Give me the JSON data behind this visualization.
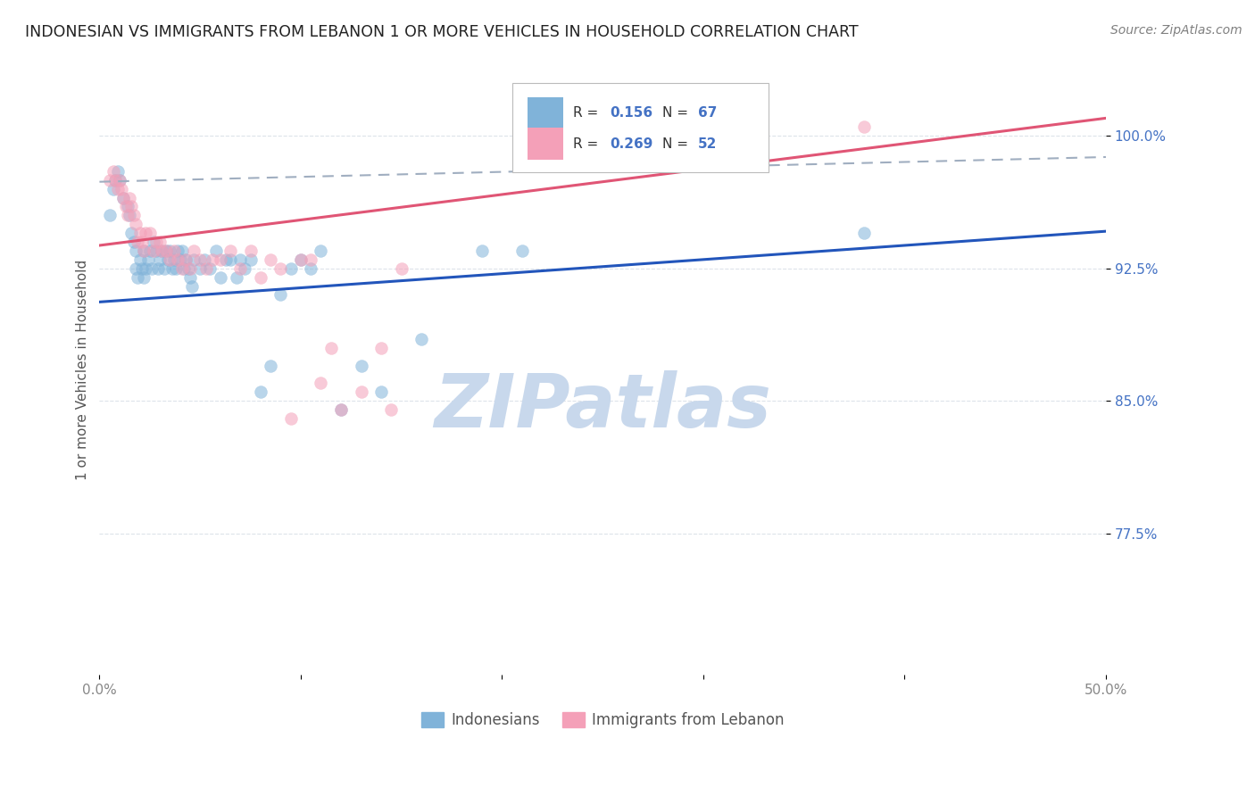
{
  "title": "INDONESIAN VS IMMIGRANTS FROM LEBANON 1 OR MORE VEHICLES IN HOUSEHOLD CORRELATION CHART",
  "source": "Source: ZipAtlas.com",
  "ylabel": "1 or more Vehicles in Household",
  "ytick_labels": [
    "100.0%",
    "92.5%",
    "85.0%",
    "77.5%"
  ],
  "ytick_values": [
    1.0,
    0.925,
    0.85,
    0.775
  ],
  "xlim": [
    0.0,
    0.5
  ],
  "ylim": [
    0.695,
    1.04
  ],
  "legend_R1": "R = ",
  "legend_V1": "0.156",
  "legend_N1": "N = ",
  "legend_NV1": "67",
  "legend_R2": "R = ",
  "legend_V2": "0.269",
  "legend_N2": "N = ",
  "legend_NV2": "52",
  "indonesian_scatter_x": [
    0.005,
    0.007,
    0.008,
    0.009,
    0.01,
    0.012,
    0.014,
    0.015,
    0.016,
    0.017,
    0.018,
    0.018,
    0.019,
    0.02,
    0.021,
    0.022,
    0.022,
    0.023,
    0.024,
    0.025,
    0.026,
    0.027,
    0.028,
    0.029,
    0.03,
    0.031,
    0.032,
    0.033,
    0.034,
    0.035,
    0.036,
    0.037,
    0.038,
    0.039,
    0.04,
    0.041,
    0.042,
    0.043,
    0.044,
    0.045,
    0.046,
    0.047,
    0.05,
    0.052,
    0.055,
    0.058,
    0.06,
    0.063,
    0.065,
    0.068,
    0.07,
    0.072,
    0.075,
    0.08,
    0.085,
    0.09,
    0.095,
    0.1,
    0.105,
    0.11,
    0.12,
    0.13,
    0.14,
    0.16,
    0.19,
    0.21,
    0.38
  ],
  "indonesian_scatter_y": [
    0.955,
    0.97,
    0.975,
    0.98,
    0.975,
    0.965,
    0.96,
    0.955,
    0.945,
    0.94,
    0.935,
    0.925,
    0.92,
    0.93,
    0.925,
    0.935,
    0.92,
    0.925,
    0.93,
    0.935,
    0.925,
    0.94,
    0.935,
    0.925,
    0.93,
    0.935,
    0.925,
    0.935,
    0.93,
    0.935,
    0.925,
    0.93,
    0.925,
    0.935,
    0.93,
    0.935,
    0.925,
    0.93,
    0.925,
    0.92,
    0.915,
    0.93,
    0.925,
    0.93,
    0.925,
    0.935,
    0.92,
    0.93,
    0.93,
    0.92,
    0.93,
    0.925,
    0.93,
    0.855,
    0.87,
    0.91,
    0.925,
    0.93,
    0.925,
    0.935,
    0.845,
    0.87,
    0.855,
    0.885,
    0.935,
    0.935,
    0.945
  ],
  "lebanon_scatter_x": [
    0.005,
    0.007,
    0.008,
    0.009,
    0.01,
    0.011,
    0.012,
    0.013,
    0.014,
    0.015,
    0.016,
    0.017,
    0.018,
    0.019,
    0.02,
    0.021,
    0.022,
    0.023,
    0.025,
    0.027,
    0.028,
    0.03,
    0.031,
    0.033,
    0.035,
    0.037,
    0.039,
    0.041,
    0.043,
    0.045,
    0.047,
    0.05,
    0.053,
    0.056,
    0.06,
    0.065,
    0.07,
    0.075,
    0.08,
    0.085,
    0.09,
    0.095,
    0.1,
    0.105,
    0.11,
    0.115,
    0.12,
    0.13,
    0.14,
    0.145,
    0.15,
    0.38
  ],
  "lebanon_scatter_y": [
    0.975,
    0.98,
    0.975,
    0.97,
    0.975,
    0.97,
    0.965,
    0.96,
    0.955,
    0.965,
    0.96,
    0.955,
    0.95,
    0.94,
    0.945,
    0.94,
    0.935,
    0.945,
    0.945,
    0.935,
    0.94,
    0.94,
    0.935,
    0.935,
    0.93,
    0.935,
    0.93,
    0.925,
    0.93,
    0.925,
    0.935,
    0.93,
    0.925,
    0.93,
    0.93,
    0.935,
    0.925,
    0.935,
    0.92,
    0.93,
    0.925,
    0.84,
    0.93,
    0.93,
    0.86,
    0.88,
    0.845,
    0.855,
    0.88,
    0.845,
    0.925,
    1.005
  ],
  "indonesian_line_x": [
    0.0,
    0.5
  ],
  "indonesian_line_y": [
    0.906,
    0.946
  ],
  "lebanon_line_x": [
    0.0,
    0.5
  ],
  "lebanon_line_y": [
    0.938,
    1.01
  ],
  "dashed_line_x": [
    0.0,
    0.5
  ],
  "dashed_line_y": [
    0.974,
    0.988
  ],
  "scatter_size": 100,
  "indonesian_color": "#80b3d9",
  "indonesian_edge": "#80b3d9",
  "indonesian_alpha": 0.55,
  "lebanon_color": "#f4a0b8",
  "lebanon_edge": "#f4a0b8",
  "lebanon_alpha": 0.55,
  "indo_line_color": "#2255bb",
  "leb_line_color": "#e05575",
  "dashed_line_color": "#a0aec0",
  "background_color": "#ffffff",
  "grid_color": "#dde3ea",
  "grid_linestyle": "--",
  "title_fontsize": 12.5,
  "axis_label_fontsize": 11,
  "tick_fontsize": 11,
  "watermark_text": "ZIPatlas",
  "watermark_color": "#c8d8ec",
  "watermark_fontsize": 60,
  "source_text": "Source: ZipAtlas.com",
  "source_fontsize": 10,
  "source_color": "#808080",
  "bottom_legend_labels": [
    "Indonesians",
    "Immigrants from Lebanon"
  ],
  "bottom_legend_colors": [
    "#80b3d9",
    "#f4a0b8"
  ]
}
